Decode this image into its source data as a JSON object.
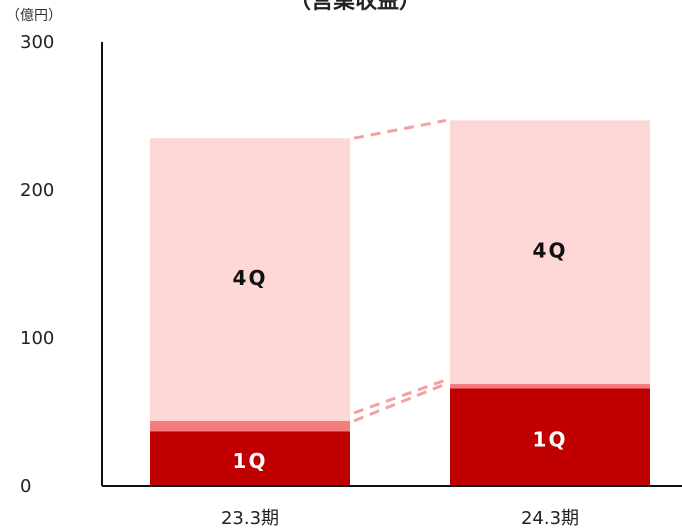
{
  "chart_data": {
    "type": "bar",
    "stacked": true,
    "title": "（営業収益）",
    "unit": "（億円）",
    "categories": [
      "23.3期",
      "24.3期"
    ],
    "ylim": [
      0,
      300
    ],
    "y_ticks": [
      0,
      100,
      200,
      300
    ],
    "series": [
      {
        "name": "1Q",
        "label": "1Q",
        "values": [
          37,
          66
        ],
        "color": "#c00000",
        "label_color": "#ffffff"
      },
      {
        "name": "",
        "label": "",
        "values": [
          7,
          3
        ],
        "color": "#f47c7c",
        "label_color": "#ffffff"
      },
      {
        "name": "4Q",
        "label": "4Q",
        "values": [
          191,
          178
        ],
        "color": "#fdd6d6",
        "label_color": "#111111"
      }
    ],
    "connectors": [
      {
        "from_level": 44,
        "to_level": 69,
        "color": "#f4a0a0"
      },
      {
        "from_level": 235,
        "to_level": 247,
        "color": "#f4a0a0"
      }
    ],
    "grid": false,
    "legend": "none",
    "axis_color": "#111111"
  }
}
